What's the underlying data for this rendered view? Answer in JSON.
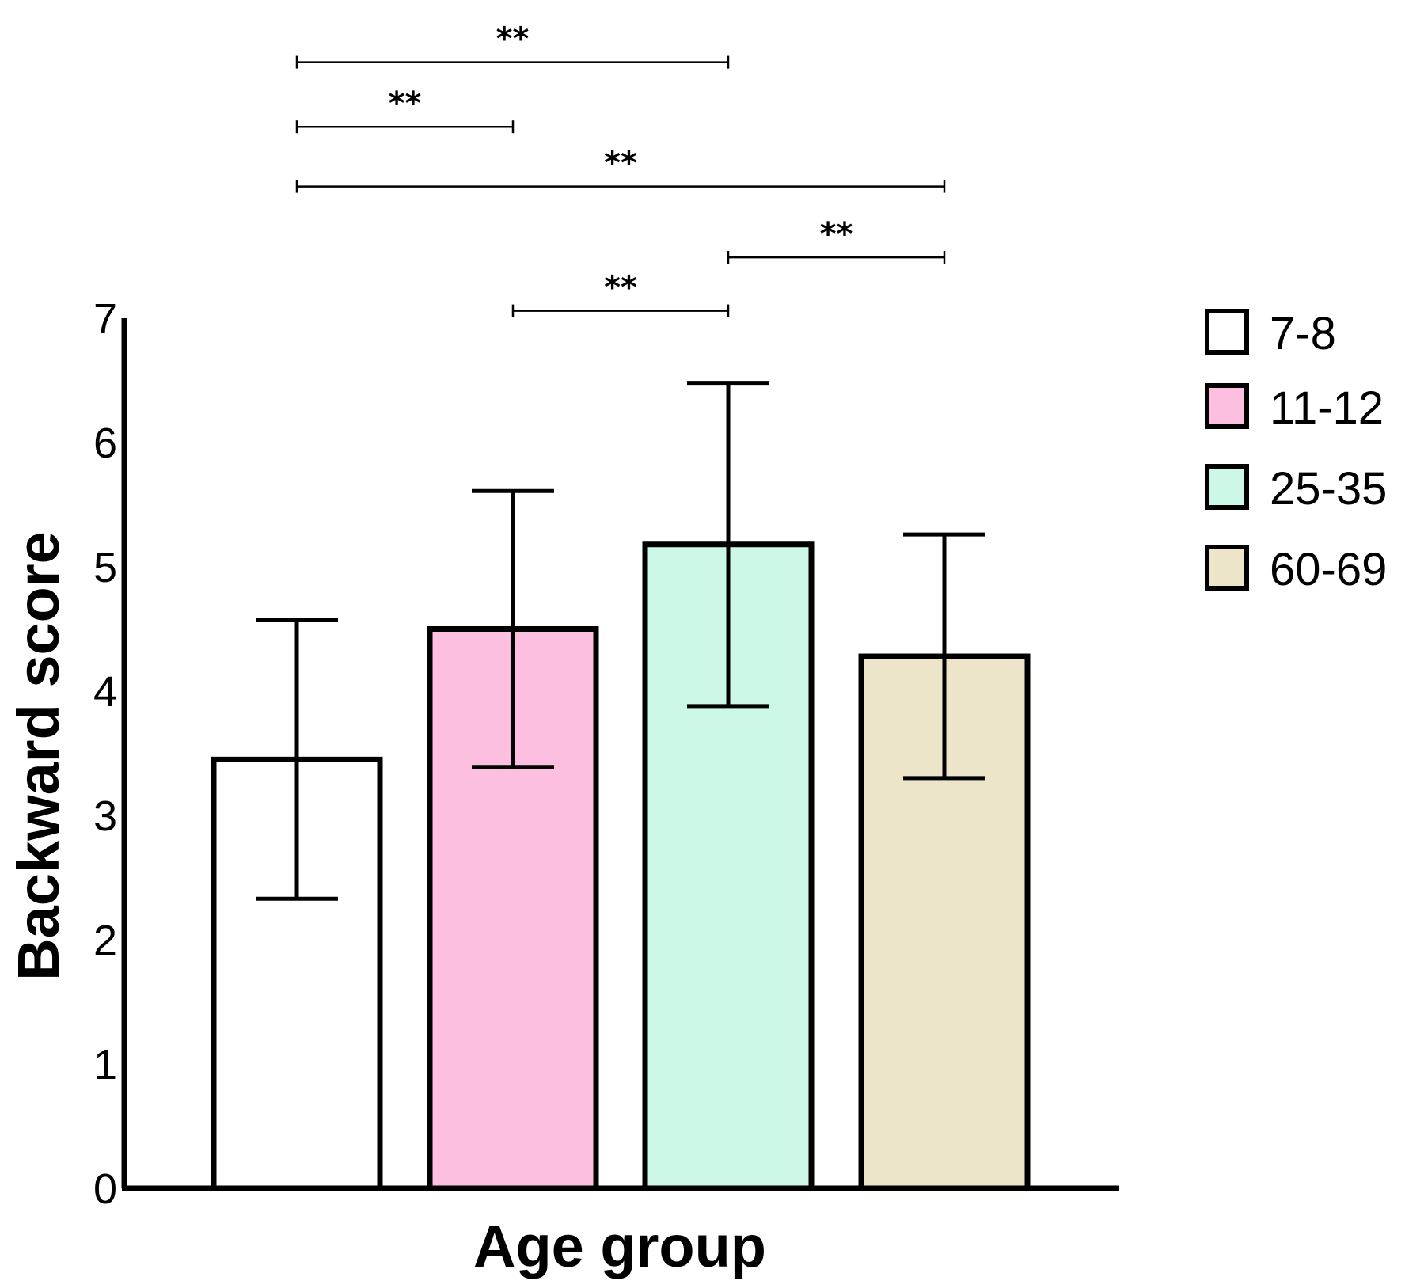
{
  "chart_data": {
    "type": "bar",
    "title": "",
    "xlabel": "Age group",
    "ylabel": "Backward score",
    "ylim": [
      0,
      7
    ],
    "yticks": [
      "0",
      "1",
      "2",
      "3",
      "4",
      "5",
      "6",
      "7"
    ],
    "grid": false,
    "legend_position": "right",
    "categories": [
      "7-8",
      "11-12",
      "25-35",
      "60-69"
    ],
    "values": [
      3.45,
      4.5,
      5.18,
      4.28
    ],
    "error": [
      1.12,
      1.11,
      1.3,
      0.98
    ],
    "colors": [
      "#ffffff",
      "#fcbfdf",
      "#cdf7e6",
      "#ece5c9"
    ],
    "significance": [
      {
        "from": 0,
        "to": 2,
        "label": "**",
        "level": 9.06
      },
      {
        "from": 0,
        "to": 1,
        "label": "**",
        "level": 8.54
      },
      {
        "from": 0,
        "to": 3,
        "label": "**",
        "level": 8.06
      },
      {
        "from": 2,
        "to": 3,
        "label": "**",
        "level": 7.49
      },
      {
        "from": 1,
        "to": 2,
        "label": "**",
        "level": 7.06
      }
    ]
  }
}
